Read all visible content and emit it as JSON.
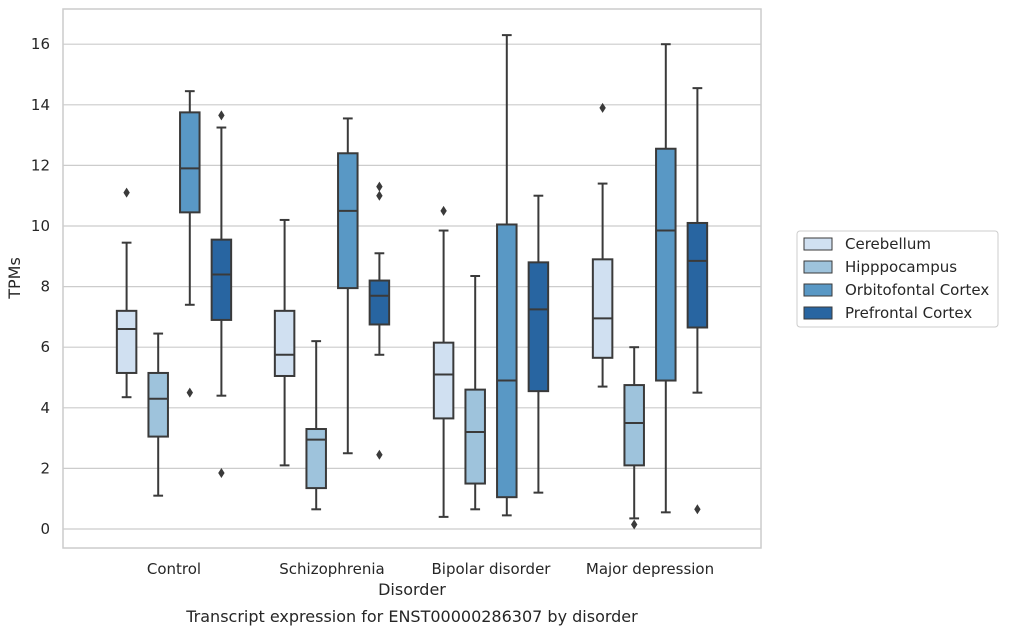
{
  "chart_data": {
    "type": "box",
    "title": "Transcript expression for ENST00000286307 by disorder",
    "xlabel": "Disorder",
    "ylabel": "TPMs",
    "ylim": [
      -0.6,
      17.2
    ],
    "yticks": [
      0,
      2,
      4,
      6,
      8,
      10,
      12,
      14,
      16
    ],
    "grid": "horizontal",
    "legend_position": "right",
    "categories": [
      "Control",
      "Schizophrenia",
      "Bipolar disorder",
      "Major depression"
    ],
    "series": [
      {
        "name": "Cerebellum",
        "color": "#d0e0f1",
        "boxes": [
          {
            "whislo": 4.35,
            "q1": 5.15,
            "med": 6.6,
            "q3": 7.2,
            "whishi": 9.45,
            "fliers": [
              11.1
            ]
          },
          {
            "whislo": 2.1,
            "q1": 5.05,
            "med": 5.75,
            "q3": 7.2,
            "whishi": 10.2,
            "fliers": []
          },
          {
            "whislo": 0.4,
            "q1": 3.65,
            "med": 5.1,
            "q3": 6.15,
            "whishi": 9.85,
            "fliers": [
              10.5
            ]
          },
          {
            "whislo": 4.7,
            "q1": 5.65,
            "med": 6.95,
            "q3": 8.9,
            "whishi": 11.4,
            "fliers": [
              13.9
            ]
          }
        ]
      },
      {
        "name": "Hipppocampus",
        "color": "#9ec3dc",
        "boxes": [
          {
            "whislo": 1.1,
            "q1": 3.05,
            "med": 4.3,
            "q3": 5.15,
            "whishi": 6.45,
            "fliers": []
          },
          {
            "whislo": 0.65,
            "q1": 1.35,
            "med": 2.95,
            "q3": 3.3,
            "whishi": 6.2,
            "fliers": []
          },
          {
            "whislo": 0.65,
            "q1": 1.5,
            "med": 3.2,
            "q3": 4.6,
            "whishi": 8.35,
            "fliers": []
          },
          {
            "whislo": 0.35,
            "q1": 2.1,
            "med": 3.5,
            "q3": 4.75,
            "whishi": 6.0,
            "fliers": [
              0.15
            ]
          }
        ]
      },
      {
        "name": "Orbitofontal Cortex",
        "color": "#5998c5",
        "boxes": [
          {
            "whislo": 7.4,
            "q1": 10.45,
            "med": 11.9,
            "q3": 13.75,
            "whishi": 14.45,
            "fliers": [
              4.5
            ]
          },
          {
            "whislo": 2.5,
            "q1": 7.95,
            "med": 10.5,
            "q3": 12.4,
            "whishi": 13.55,
            "fliers": []
          },
          {
            "whislo": 0.45,
            "q1": 1.05,
            "med": 4.9,
            "q3": 10.05,
            "whishi": 16.3,
            "fliers": []
          },
          {
            "whislo": 0.55,
            "q1": 4.9,
            "med": 9.85,
            "q3": 12.55,
            "whishi": 16.0,
            "fliers": []
          }
        ]
      },
      {
        "name": "Prefrontal Cortex",
        "color": "#2865a1",
        "boxes": [
          {
            "whislo": 4.4,
            "q1": 6.9,
            "med": 8.4,
            "q3": 9.55,
            "whishi": 13.25,
            "fliers": [
              13.65,
              1.85
            ]
          },
          {
            "whislo": 5.75,
            "q1": 6.75,
            "med": 7.7,
            "q3": 8.2,
            "whishi": 9.1,
            "fliers": [
              11.3,
              11.0,
              2.45
            ]
          },
          {
            "whislo": 1.2,
            "q1": 4.55,
            "med": 7.25,
            "q3": 8.8,
            "whishi": 11.0,
            "fliers": []
          },
          {
            "whislo": 4.5,
            "q1": 6.65,
            "med": 8.85,
            "q3": 10.1,
            "whishi": 14.55,
            "fliers": [
              0.65
            ]
          }
        ]
      }
    ]
  }
}
